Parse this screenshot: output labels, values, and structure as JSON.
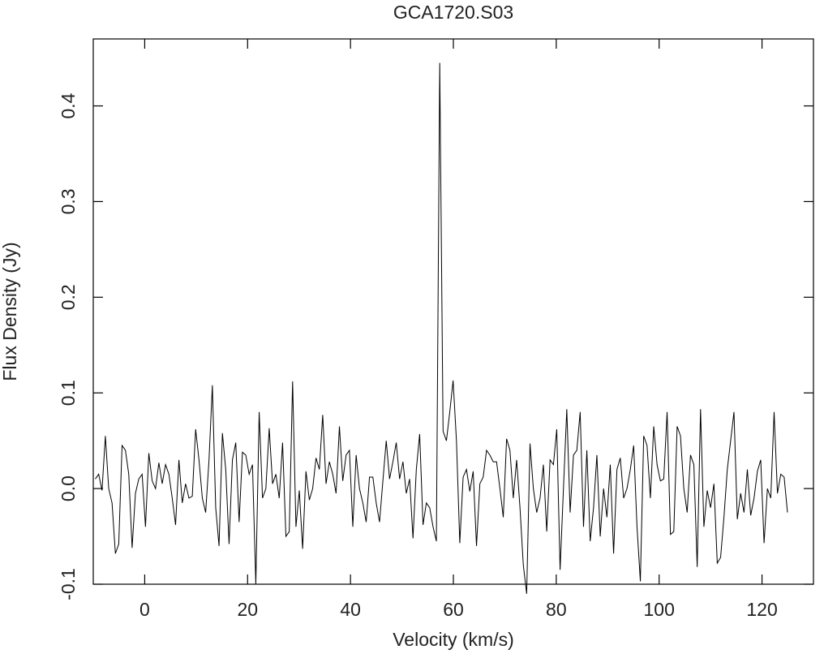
{
  "chart_data": {
    "type": "line",
    "title": "GCA1720.S03",
    "x_label": "Velocity (km/s)",
    "y_label": "Flux Density (Jy)",
    "xlim": [
      -10,
      130
    ],
    "ylim": [
      -0.1,
      0.47
    ],
    "xticks": [
      0,
      20,
      40,
      60,
      80,
      100,
      120
    ],
    "yticks": [
      -0.1,
      {
        "value": 0,
        "label": "0.0"
      },
      0.1,
      0.2,
      0.3,
      0.4
    ],
    "color": "#000000",
    "x": [
      -9.6,
      -8.95,
      -8.3,
      -7.65,
      -7.0,
      -6.35,
      -5.7,
      -5.05,
      -4.4,
      -3.75,
      -3.1,
      -2.45,
      -1.8,
      -1.15,
      -0.5,
      0.15,
      0.8,
      1.45,
      2.1,
      2.75,
      3.4,
      4.05,
      4.7,
      5.35,
      6.0,
      6.65,
      7.3,
      7.95,
      8.6,
      9.25,
      9.9,
      10.55,
      11.2,
      11.85,
      12.5,
      13.15,
      13.8,
      14.45,
      15.1,
      15.75,
      16.4,
      17.05,
      17.7,
      18.35,
      19.0,
      19.65,
      20.3,
      20.95,
      21.6,
      22.25,
      22.9,
      23.55,
      24.2,
      24.85,
      25.5,
      26.15,
      26.8,
      27.45,
      28.1,
      28.75,
      29.4,
      30.05,
      30.7,
      31.35,
      32.0,
      32.65,
      33.3,
      33.95,
      34.6,
      35.25,
      35.9,
      36.55,
      37.2,
      37.85,
      38.5,
      39.15,
      39.8,
      40.45,
      41.1,
      41.75,
      42.4,
      43.05,
      43.7,
      44.35,
      45.0,
      45.65,
      46.3,
      46.95,
      47.6,
      48.25,
      48.9,
      49.55,
      50.2,
      50.85,
      51.5,
      52.15,
      52.8,
      53.45,
      54.1,
      54.75,
      55.4,
      56.05,
      56.7,
      57.35,
      58.0,
      58.65,
      59.3,
      59.95,
      60.6,
      61.25,
      61.9,
      62.55,
      63.2,
      63.85,
      64.5,
      65.15,
      65.8,
      66.45,
      67.1,
      67.75,
      68.4,
      69.05,
      69.7,
      70.35,
      71.0,
      71.65,
      72.3,
      72.95,
      73.6,
      74.25,
      74.9,
      75.55,
      76.2,
      76.85,
      77.5,
      78.15,
      78.8,
      79.45,
      80.1,
      80.75,
      81.4,
      82.05,
      82.7,
      83.35,
      84.0,
      84.65,
      85.3,
      85.95,
      86.6,
      87.25,
      87.9,
      88.55,
      89.2,
      89.85,
      90.5,
      91.15,
      91.8,
      92.45,
      93.1,
      93.75,
      94.4,
      95.05,
      95.7,
      96.35,
      97.0,
      97.65,
      98.3,
      98.95,
      99.6,
      100.25,
      100.9,
      101.55,
      102.2,
      102.85,
      103.5,
      104.15,
      104.8,
      105.45,
      106.1,
      106.75,
      107.4,
      108.05,
      108.7,
      109.35,
      110.0,
      110.65,
      111.3,
      111.95,
      112.6,
      113.25,
      113.9,
      114.55,
      115.2,
      115.85,
      116.5,
      117.15,
      117.8,
      118.45,
      119.1,
      119.75,
      120.4,
      121.05,
      121.7,
      122.35,
      123.0,
      123.65,
      124.3,
      124.95
    ],
    "values": [
      0.01,
      0.015,
      -0.002,
      0.055,
      0.0,
      -0.015,
      -0.068,
      -0.058,
      0.045,
      0.04,
      0.015,
      -0.062,
      -0.005,
      0.01,
      0.015,
      -0.04,
      0.037,
      0.008,
      0.0,
      0.027,
      0.005,
      0.025,
      0.015,
      -0.01,
      -0.038,
      0.03,
      -0.015,
      0.005,
      -0.01,
      -0.008,
      0.062,
      0.03,
      -0.01,
      -0.025,
      0.03,
      0.108,
      -0.02,
      -0.06,
      0.058,
      0.02,
      -0.058,
      0.03,
      0.048,
      -0.035,
      0.038,
      0.035,
      0.015,
      0.025,
      -0.1,
      0.08,
      -0.01,
      0.0,
      0.063,
      0.005,
      0.015,
      -0.01,
      0.048,
      -0.05,
      -0.045,
      0.112,
      -0.04,
      -0.002,
      -0.063,
      0.018,
      -0.012,
      0.0,
      0.032,
      0.02,
      0.077,
      0.005,
      0.028,
      0.015,
      -0.005,
      0.065,
      0.008,
      0.035,
      0.04,
      -0.04,
      0.035,
      0.0,
      -0.015,
      -0.035,
      0.012,
      0.012,
      -0.015,
      -0.035,
      0.008,
      0.05,
      0.01,
      0.028,
      0.048,
      0.01,
      0.028,
      -0.005,
      0.01,
      -0.052,
      0.02,
      0.057,
      -0.038,
      -0.015,
      -0.02,
      -0.04,
      -0.055,
      0.445,
      0.06,
      0.05,
      0.08,
      0.113,
      0.05,
      -0.057,
      0.012,
      0.02,
      -0.003,
      0.018,
      -0.06,
      0.005,
      0.012,
      0.04,
      0.035,
      0.028,
      0.028,
      0.0,
      -0.03,
      0.052,
      0.04,
      -0.01,
      0.03,
      -0.02,
      -0.08,
      -0.11,
      0.047,
      0.0,
      -0.025,
      -0.01,
      0.025,
      -0.045,
      0.03,
      0.025,
      0.062,
      -0.085,
      0.0,
      0.083,
      -0.025,
      0.035,
      0.04,
      0.08,
      -0.04,
      0.04,
      -0.055,
      -0.02,
      0.035,
      -0.05,
      0.0,
      -0.03,
      0.025,
      -0.068,
      0.02,
      0.032,
      -0.01,
      0.0,
      0.02,
      0.045,
      -0.04,
      -0.097,
      0.055,
      0.045,
      -0.01,
      0.065,
      0.025,
      0.008,
      0.01,
      0.08,
      -0.048,
      -0.045,
      0.065,
      0.055,
      0.0,
      -0.025,
      0.035,
      0.025,
      -0.082,
      0.083,
      -0.04,
      -0.002,
      -0.02,
      0.005,
      -0.078,
      -0.072,
      -0.03,
      0.02,
      0.05,
      0.08,
      -0.032,
      -0.005,
      -0.025,
      0.02,
      -0.028,
      -0.01,
      0.018,
      0.03,
      -0.057,
      0.0,
      -0.01,
      0.08,
      -0.005,
      0.015,
      0.012,
      -0.025
    ]
  }
}
